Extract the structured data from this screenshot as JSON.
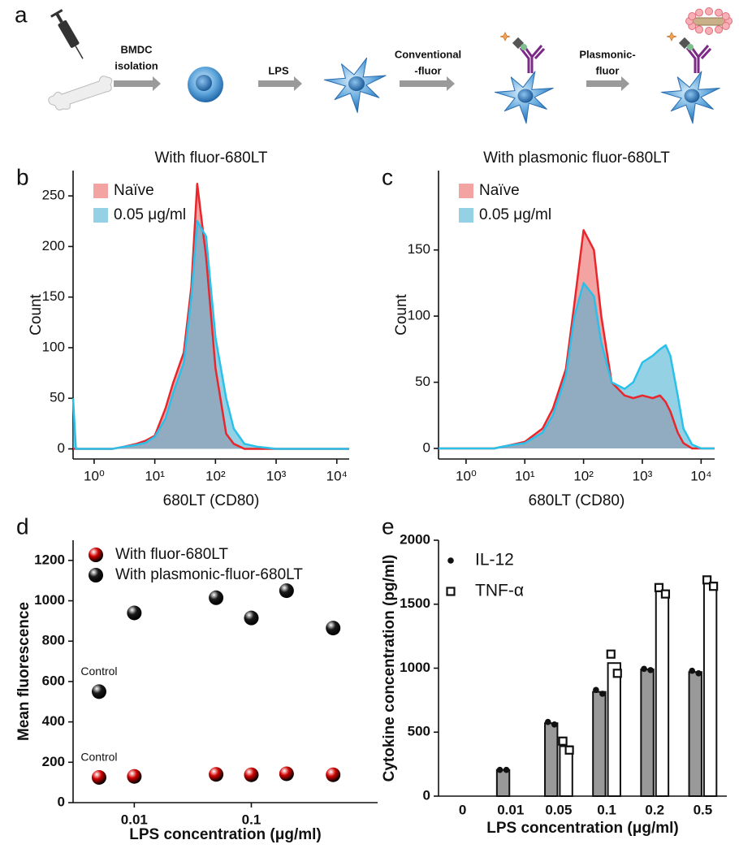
{
  "panel_a": {
    "letter": "a",
    "labels": [
      [
        "BMDC",
        "isolation"
      ],
      [
        "LPS"
      ],
      [
        "Conventional",
        "-fluor"
      ],
      [
        "Plasmonic-",
        "fluor"
      ]
    ]
  },
  "chart_data": [
    {
      "type": "area",
      "panel_label": "b",
      "title": "With fluor-680LT",
      "xlabel": "680LT (CD80)",
      "ylabel": "Count",
      "xscale": "log",
      "xlim": [
        0.45,
        16000
      ],
      "xticks": [
        {
          "value": 1,
          "label": "10⁰"
        },
        {
          "value": 10,
          "label": "10¹"
        },
        {
          "value": 100,
          "label": "10²"
        },
        {
          "value": 1000,
          "label": "10³"
        },
        {
          "value": 10000,
          "label": "10⁴"
        }
      ],
      "ylim": [
        -10,
        275
      ],
      "yticks": [
        0,
        50,
        100,
        150,
        200,
        250
      ],
      "legend": "upper left",
      "x": [
        0.45,
        0.5,
        1,
        1.5,
        2,
        3,
        5,
        7,
        10,
        15,
        20,
        30,
        40,
        50,
        70,
        100,
        150,
        200,
        300,
        500,
        1000,
        3000,
        10000,
        16000
      ],
      "series": [
        {
          "name": "Naïve",
          "color": "#e8262b",
          "fill": "#f4a3a3",
          "fill_opacity": 1,
          "values": [
            0,
            0,
            0,
            0,
            0,
            2,
            5,
            8,
            13,
            40,
            65,
            95,
            160,
            262,
            190,
            80,
            15,
            5,
            0,
            0,
            0,
            0,
            0,
            0
          ]
        },
        {
          "name": "0.05 μg/ml",
          "color": "#29c0ea",
          "fill": "#4fb3d4",
          "fill_opacity": 0.6,
          "values": [
            50,
            0,
            0,
            0,
            0,
            2,
            4,
            6,
            12,
            30,
            55,
            85,
            150,
            225,
            210,
            110,
            50,
            20,
            5,
            2,
            0,
            0,
            0,
            0
          ]
        }
      ]
    },
    {
      "type": "area",
      "panel_label": "c",
      "title": "With plasmonic fluor-680LT",
      "xlabel": "680LT (CD80)",
      "ylabel": "Count",
      "xscale": "log",
      "xlim": [
        0.34,
        17000
      ],
      "xticks": [
        {
          "value": 1,
          "label": "10⁰"
        },
        {
          "value": 10,
          "label": "10¹"
        },
        {
          "value": 100,
          "label": "10²"
        },
        {
          "value": 1000,
          "label": "10³"
        },
        {
          "value": 10000,
          "label": "10⁴"
        }
      ],
      "ylim": [
        -8,
        210
      ],
      "yticks": [
        0,
        50,
        100,
        150
      ],
      "legend": "upper left",
      "x": [
        0.34,
        1,
        2,
        3,
        5,
        10,
        20,
        30,
        50,
        70,
        100,
        150,
        200,
        300,
        500,
        700,
        1000,
        1500,
        2000,
        2500,
        3000,
        4000,
        5000,
        7000,
        10000,
        17000
      ],
      "series": [
        {
          "name": "Naïve",
          "color": "#e8262b",
          "fill": "#f4a3a3",
          "fill_opacity": 1,
          "values": [
            0,
            0,
            0,
            0,
            2,
            5,
            15,
            30,
            60,
            110,
            165,
            150,
            100,
            50,
            40,
            38,
            40,
            38,
            40,
            35,
            28,
            12,
            4,
            0,
            0,
            0
          ]
        },
        {
          "name": "0.05 μg/ml",
          "color": "#29c0ea",
          "fill": "#4fb3d4",
          "fill_opacity": 0.6,
          "values": [
            0,
            0,
            0,
            0,
            2,
            4,
            12,
            25,
            55,
            100,
            125,
            115,
            80,
            50,
            45,
            50,
            65,
            70,
            75,
            78,
            70,
            40,
            15,
            3,
            0,
            0
          ]
        }
      ]
    },
    {
      "type": "scatter",
      "panel_label": "d",
      "xlabel": "LPS concentration (μg/ml)",
      "ylabel": "Mean fluorescence",
      "xscale": "log",
      "xlim": [
        0.003,
        1.2
      ],
      "xticks": [
        0.01,
        0.1
      ],
      "ylim": [
        0,
        1300
      ],
      "yticks": [
        0,
        200,
        400,
        600,
        800,
        1000,
        1200
      ],
      "legend": "upper left",
      "x": [
        0.005,
        0.01,
        0.05,
        0.1,
        0.2,
        0.5
      ],
      "series": [
        {
          "name": "With fluor-680LT",
          "color": "#d10000",
          "values": [
            125,
            130,
            140,
            138,
            143,
            138
          ]
        },
        {
          "name": "With plasmonic-fluor-680LT",
          "color": "#1a1a1a",
          "values": [
            550,
            940,
            1015,
            915,
            1050,
            865
          ]
        }
      ],
      "annotations": [
        "Control",
        "Control"
      ]
    },
    {
      "type": "bar",
      "panel_label": "e",
      "xlabel": "LPS concentration (μg/ml)",
      "ylabel": "Cytokine concentration (pg/ml)",
      "categories": [
        "0",
        "0.01",
        "0.05",
        "0.1",
        "0.2",
        "0.5"
      ],
      "ylim": [
        0,
        2000
      ],
      "yticks": [
        0,
        500,
        1000,
        1500,
        2000
      ],
      "legend": "upper left",
      "series": [
        {
          "name": "IL-12",
          "color": "#999999",
          "marker": "circle",
          "values": [
            0,
            205,
            570,
            815,
            990,
            970
          ],
          "points": [
            null,
            [
              205,
              205
            ],
            [
              580,
              560
            ],
            [
              830,
              800
            ],
            [
              995,
              985
            ],
            [
              980,
              960
            ]
          ]
        },
        {
          "name": "TNF-α",
          "color": "#ffffff",
          "marker": "square",
          "values": [
            0,
            0,
            390,
            1040,
            1600,
            1670
          ],
          "points": [
            null,
            null,
            [
              430,
              360
            ],
            [
              1110,
              960
            ],
            [
              1630,
              1580
            ],
            [
              1690,
              1640
            ]
          ]
        }
      ]
    }
  ]
}
